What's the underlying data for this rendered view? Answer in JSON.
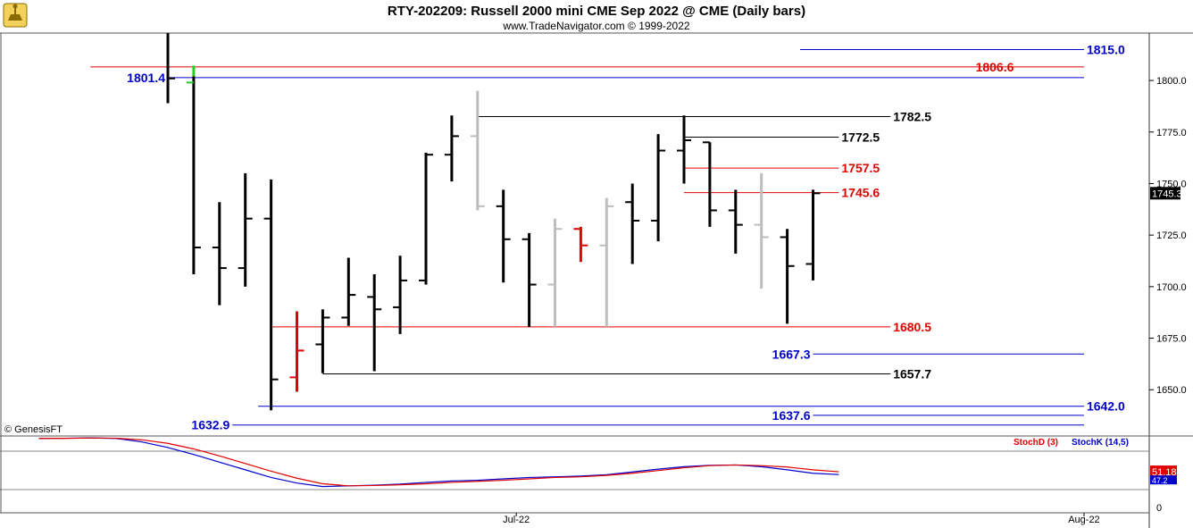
{
  "header": {
    "title": "RTY-202209:  Russell 2000 mini CME Sep 2022 @ CME  (Daily bars)",
    "subtitle": "www.TradeNavigator.com © 1999-2022"
  },
  "copyright": "© GenesisFT",
  "colors": {
    "black": "#000000",
    "red": "#e00000",
    "blue": "#0000cc",
    "gray": "#bdbdbd",
    "green": "#22cc22"
  },
  "chart_data": {
    "type": "ohlc",
    "y_axis": {
      "ylim": [
        1628,
        1823
      ],
      "ticks": [
        "1650.0",
        "1675.0",
        "1700.0",
        "1725.0",
        "1750.0",
        "1775.0",
        "1800.0"
      ]
    },
    "x_axis": {
      "labels": [
        {
          "label": "Jul-22",
          "index": 13.5
        },
        {
          "label": "Aug-22",
          "index": 35.5
        }
      ]
    },
    "last_price": "1745.3",
    "bars": [
      {
        "o": null,
        "h": 1823,
        "l": 1789,
        "c": 1801,
        "color": "black"
      },
      {
        "o": 1799,
        "h": 1802,
        "l": 1706,
        "c": 1719,
        "color": "black",
        "open_color": "green"
      },
      {
        "o": 1719,
        "h": 1741,
        "l": 1691,
        "c": 1709,
        "color": "black"
      },
      {
        "o": 1709,
        "h": 1755,
        "l": 1700,
        "c": 1733,
        "color": "black"
      },
      {
        "o": 1733,
        "h": 1752,
        "l": 1640,
        "c": 1655,
        "color": "black"
      },
      {
        "o": 1656,
        "h": 1688,
        "l": 1649,
        "c": 1669,
        "color": "red"
      },
      {
        "o": 1672,
        "h": 1689,
        "l": 1658,
        "c": 1685,
        "color": "black"
      },
      {
        "o": 1685,
        "h": 1714,
        "l": 1681,
        "c": 1696,
        "color": "black"
      },
      {
        "o": 1695,
        "h": 1706,
        "l": 1659,
        "c": 1689,
        "color": "black"
      },
      {
        "o": 1690,
        "h": 1715,
        "l": 1677,
        "c": 1703,
        "color": "black"
      },
      {
        "o": 1703,
        "h": 1765,
        "l": 1701,
        "c": 1764,
        "color": "black"
      },
      {
        "o": 1764,
        "h": 1783,
        "l": 1751,
        "c": 1773,
        "color": "black"
      },
      {
        "o": 1773,
        "h": 1795,
        "l": 1737,
        "c": 1739,
        "color": "gray"
      },
      {
        "o": 1739,
        "h": 1747,
        "l": 1702,
        "c": 1723,
        "color": "black"
      },
      {
        "o": 1723,
        "h": 1726,
        "l": 1680.5,
        "c": 1701,
        "color": "black"
      },
      {
        "o": 1701,
        "h": 1733,
        "l": 1680.5,
        "c": 1728,
        "color": "gray"
      },
      {
        "o": 1728,
        "h": 1729,
        "l": 1712,
        "c": 1720,
        "color": "red"
      },
      {
        "o": 1720,
        "h": 1743,
        "l": 1680.5,
        "c": 1739,
        "color": "gray"
      },
      {
        "o": 1741,
        "h": 1750,
        "l": 1711,
        "c": 1732,
        "color": "black"
      },
      {
        "o": 1732,
        "h": 1774,
        "l": 1722,
        "c": 1766,
        "color": "black"
      },
      {
        "o": 1766,
        "h": 1783,
        "l": 1750,
        "c": 1771,
        "color": "black"
      },
      {
        "o": 1770,
        "h": 1770,
        "l": 1729,
        "c": 1737,
        "color": "black"
      },
      {
        "o": 1737,
        "h": 1747,
        "l": 1716,
        "c": 1730,
        "color": "black"
      },
      {
        "o": 1730,
        "h": 1755,
        "l": 1699,
        "c": 1724,
        "color": "gray"
      },
      {
        "o": 1724,
        "h": 1728,
        "l": 1682,
        "c": 1710,
        "color": "black"
      },
      {
        "o": 1711,
        "h": 1747,
        "l": 1703,
        "c": 1745.3,
        "color": "black"
      }
    ],
    "levels": [
      {
        "value": 1815.0,
        "label": "1815.0",
        "color": "blue",
        "from": 24.5,
        "to": 35.5,
        "side": "right"
      },
      {
        "value": 1806.6,
        "label": "1806.6",
        "color": "red",
        "from": -3,
        "to": 35.5,
        "side": "right-inner"
      },
      {
        "value": 1801.4,
        "label": "1801.4",
        "color": "blue",
        "from": 0,
        "to": 35.5,
        "side": "left"
      },
      {
        "value": 1782.5,
        "label": "1782.5",
        "color": "black",
        "from": 12,
        "to": 28,
        "side": "right"
      },
      {
        "value": 1772.5,
        "label": "1772.5",
        "color": "black",
        "from": 20,
        "to": 26,
        "side": "right"
      },
      {
        "value": 1757.5,
        "label": "1757.5",
        "color": "red",
        "from": 20,
        "to": 26,
        "side": "right"
      },
      {
        "value": 1745.6,
        "label": "1745.6",
        "color": "red",
        "from": 20,
        "to": 26,
        "side": "right"
      },
      {
        "value": 1680.5,
        "label": "1680.5",
        "color": "red",
        "from": 4,
        "to": 28,
        "side": "right"
      },
      {
        "value": 1667.3,
        "label": "1667.3",
        "color": "blue",
        "from": 25,
        "to": 35.5,
        "side": "left"
      },
      {
        "value": 1657.7,
        "label": "1657.7",
        "color": "black",
        "from": 6,
        "to": 28,
        "side": "right"
      },
      {
        "value": 1642.0,
        "label": "1642.0",
        "color": "blue",
        "from": 3.5,
        "to": 35.5,
        "side": "right"
      },
      {
        "value": 1637.6,
        "label": "1637.6",
        "color": "blue",
        "from": 25,
        "to": 35.5,
        "side": "left"
      },
      {
        "value": 1632.9,
        "label": "1632.9",
        "color": "blue",
        "from": 2.5,
        "to": 35.5,
        "side": "left"
      }
    ],
    "stochastic": {
      "ylim": [
        0,
        100
      ],
      "ticks": [
        "0"
      ],
      "legend": [
        {
          "name": "StochD (3)",
          "color": "red"
        },
        {
          "name": "StochK (14,5)",
          "color": "blue"
        }
      ],
      "last_d": "51.18",
      "last_k": "47.2",
      "d_points": [
        [
          -5,
          99
        ],
        [
          -4,
          99.2
        ],
        [
          -3,
          99.6
        ],
        [
          -2,
          99.4
        ],
        [
          -1,
          97
        ],
        [
          0,
          92
        ],
        [
          1,
          84
        ],
        [
          2,
          74
        ],
        [
          3,
          63
        ],
        [
          4,
          52
        ],
        [
          5,
          42
        ],
        [
          6,
          34
        ],
        [
          7,
          31
        ],
        [
          8,
          31.5
        ],
        [
          9,
          32.5
        ],
        [
          10,
          34
        ],
        [
          11,
          36
        ],
        [
          12,
          37.5
        ],
        [
          13,
          39
        ],
        [
          14,
          41
        ],
        [
          15,
          43
        ],
        [
          16,
          44
        ],
        [
          17,
          46
        ],
        [
          18,
          49
        ],
        [
          19,
          53
        ],
        [
          20,
          57
        ],
        [
          21,
          60
        ],
        [
          22,
          61
        ],
        [
          23,
          60
        ],
        [
          24,
          58
        ],
        [
          25,
          54
        ],
        [
          26,
          51.18
        ]
      ],
      "k_points": [
        [
          -5,
          99
        ],
        [
          -4,
          99.3
        ],
        [
          -3,
          99.8
        ],
        [
          -2,
          99
        ],
        [
          -1,
          94
        ],
        [
          0,
          86
        ],
        [
          1,
          76
        ],
        [
          2,
          65
        ],
        [
          3,
          54
        ],
        [
          4,
          43
        ],
        [
          5,
          35
        ],
        [
          6,
          30
        ],
        [
          7,
          31
        ],
        [
          8,
          32
        ],
        [
          9,
          33.5
        ],
        [
          10,
          36
        ],
        [
          11,
          38
        ],
        [
          12,
          39
        ],
        [
          13,
          41
        ],
        [
          14,
          43
        ],
        [
          15,
          44
        ],
        [
          16,
          45
        ],
        [
          17,
          47
        ],
        [
          18,
          51
        ],
        [
          19,
          55
        ],
        [
          20,
          58.5
        ],
        [
          21,
          60.5
        ],
        [
          22,
          61
        ],
        [
          23,
          58.5
        ],
        [
          24,
          54
        ],
        [
          25,
          49
        ],
        [
          26,
          47.2
        ]
      ]
    }
  }
}
